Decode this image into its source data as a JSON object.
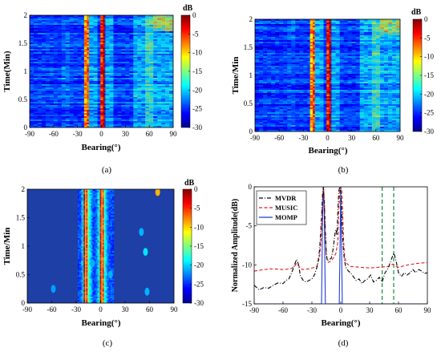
{
  "chart_data": [
    {
      "id": "a",
      "type": "heatmap",
      "caption": "(a)",
      "xlabel": "Bearing(°)",
      "ylabel": "Time(Min)",
      "xlim": [
        -90,
        90
      ],
      "ylim": [
        0,
        2
      ],
      "xticks": [
        "-90",
        "-60",
        "-30",
        "0",
        "30",
        "60",
        "90"
      ],
      "yticks": [
        "0",
        "0.5",
        "1",
        "1.5",
        "2"
      ],
      "colorbar": {
        "title": "dB",
        "range": [
          -30,
          0
        ],
        "ticks": [
          "0",
          "-5",
          "-10",
          "-15",
          "-20",
          "-25",
          "-30"
        ]
      },
      "ridges_bearing_deg": [
        -20,
        -17,
        0,
        3
      ],
      "secondary_lobes_bearing_deg": [
        -45,
        55,
        70,
        80
      ]
    },
    {
      "id": "b",
      "type": "heatmap",
      "caption": "(b)",
      "xlabel": "Bearing(°)",
      "ylabel": "Time/Min",
      "xlim": [
        -90,
        90
      ],
      "ylim": [
        0,
        2
      ],
      "xticks": [
        "-90",
        "-60",
        "-30",
        "0",
        "30",
        "60",
        "90"
      ],
      "yticks": [
        "0",
        "0.5",
        "1",
        "1.5",
        "2"
      ],
      "colorbar": {
        "title": "dB",
        "range": [
          -30,
          0
        ],
        "ticks": [
          "0",
          "-5",
          "-10",
          "-15",
          "-20",
          "-25",
          "-30"
        ]
      },
      "ridges_bearing_deg": [
        -20,
        -17,
        0,
        3
      ],
      "secondary_lobes_bearing_deg": [
        -45,
        55,
        75,
        82
      ]
    },
    {
      "id": "c",
      "type": "heatmap",
      "caption": "(c)",
      "xlabel": "Bearing(°)",
      "ylabel": "Time/Min",
      "xlim": [
        -90,
        90
      ],
      "ylim": [
        0,
        2
      ],
      "xticks": [
        "-90",
        "-60",
        "-30",
        "0",
        "30",
        "60",
        "90"
      ],
      "yticks": [
        "0",
        "0.5",
        "1",
        "1.5",
        "2"
      ],
      "colorbar": {
        "title": "dB",
        "range": [
          -30,
          0
        ],
        "ticks": [
          "0",
          "-5",
          "-10",
          "-15",
          "-20",
          "-25",
          "-30"
        ]
      },
      "ridges_bearing_deg": [
        -20,
        -17,
        0,
        3
      ],
      "secondary_lobes_bearing_deg": [
        -10,
        55,
        70
      ]
    },
    {
      "id": "d",
      "type": "line",
      "caption": "(d)",
      "xlabel": "Bearing(°)",
      "ylabel": "Normalized Amplitude(dB)",
      "xlim": [
        -90,
        90
      ],
      "ylim": [
        -15,
        0
      ],
      "xticks": [
        "-90",
        "-60",
        "-30",
        "0",
        "30",
        "60",
        "90"
      ],
      "yticks": [
        "0",
        "-5",
        "-10",
        "-15"
      ],
      "legend_position": "top-left",
      "vlines_bearing_deg": [
        43,
        55
      ],
      "series": [
        {
          "name": "MVDR",
          "color": "#000000",
          "dash": "dashdot",
          "x": [
            -90,
            -85,
            -80,
            -75,
            -70,
            -65,
            -60,
            -57,
            -54,
            -51,
            -48,
            -46,
            -44,
            -42,
            -39,
            -36,
            -33,
            -30,
            -27,
            -24,
            -22,
            -20,
            -19,
            -18,
            -17,
            -16,
            -15,
            -14,
            -12,
            -10,
            -8,
            -6,
            -5,
            -4,
            -3,
            -2,
            -1,
            0,
            1,
            2,
            3,
            4,
            5,
            6,
            8,
            10,
            13,
            16,
            19,
            22,
            25,
            28,
            31,
            34,
            37,
            40,
            43,
            46,
            49,
            52,
            54,
            55,
            56,
            58,
            60,
            63,
            66,
            69,
            72,
            75,
            78,
            81,
            84,
            87,
            90
          ],
          "y": [
            -12.6,
            -13.2,
            -12.9,
            -13.0,
            -12.6,
            -12.3,
            -12.4,
            -12.0,
            -11.8,
            -11.0,
            -10.0,
            -9.3,
            -9.9,
            -11.4,
            -12.0,
            -12.2,
            -12.0,
            -11.8,
            -11.2,
            -10.0,
            -8.0,
            -4.0,
            -1.0,
            0.0,
            -2.5,
            -6.0,
            -8.5,
            -9.5,
            -9.3,
            -9.2,
            -8.0,
            -6.0,
            -5.5,
            -6.2,
            -3.0,
            -0.5,
            0.0,
            -0.8,
            -3.5,
            -6.5,
            -8.5,
            -9.5,
            -10.2,
            -10.5,
            -10.8,
            -11.0,
            -11.5,
            -12.0,
            -11.8,
            -12.4,
            -12.0,
            -11.8,
            -11.3,
            -12.2,
            -12.0,
            -11.6,
            -12.2,
            -11.0,
            -10.5,
            -9.5,
            -8.8,
            -8.5,
            -8.8,
            -9.8,
            -11.0,
            -11.5,
            -11.0,
            -11.3,
            -11.0,
            -10.6,
            -11.0,
            -10.6,
            -10.8,
            -11.1,
            -11.0
          ]
        },
        {
          "name": "MUSIC",
          "color": "#e31a1c",
          "dash": "dashed",
          "x": [
            -90,
            -80,
            -70,
            -60,
            -52,
            -48,
            -46,
            -44,
            -40,
            -32,
            -25,
            -22,
            -20,
            -19,
            -18,
            -17,
            -16,
            -15,
            -13,
            -10,
            -7,
            -5,
            -3,
            -2,
            -1,
            0,
            1,
            2,
            3,
            4,
            6,
            10,
            20,
            30,
            40,
            50,
            54,
            56,
            60,
            70,
            80,
            90
          ],
          "y": [
            -10.8,
            -10.6,
            -10.5,
            -10.6,
            -10.5,
            -10.2,
            -9.8,
            -10.1,
            -10.6,
            -10.5,
            -10.2,
            -9.0,
            -6.0,
            -2.0,
            0.0,
            -2.0,
            -6.0,
            -9.0,
            -9.7,
            -9.5,
            -9.0,
            -8.5,
            -7.0,
            -3.0,
            -0.5,
            0.0,
            -0.5,
            -3.5,
            -7.0,
            -9.0,
            -9.8,
            -10.2,
            -10.3,
            -10.4,
            -10.3,
            -10.2,
            -9.9,
            -10.1,
            -10.3,
            -10.0,
            -9.8,
            -9.7
          ]
        },
        {
          "name": "MOMP",
          "color": "#1f3fd6",
          "dash": "solid",
          "x": [
            -90,
            -20,
            -19.6,
            -19.2,
            -18.6,
            -18,
            -17.4,
            -16.8,
            -16.4,
            -16,
            0,
            -16,
            -1.6,
            -1.2,
            -0.6,
            0,
            0.6,
            1.2,
            1.6,
            2,
            90
          ],
          "y": [
            -15,
            -15,
            -11,
            -6,
            -2,
            0,
            -2,
            -6,
            -11,
            -15,
            -15,
            -15,
            -15,
            -11,
            -6,
            0,
            -6,
            -11,
            -15,
            -15,
            -15
          ]
        }
      ]
    }
  ]
}
